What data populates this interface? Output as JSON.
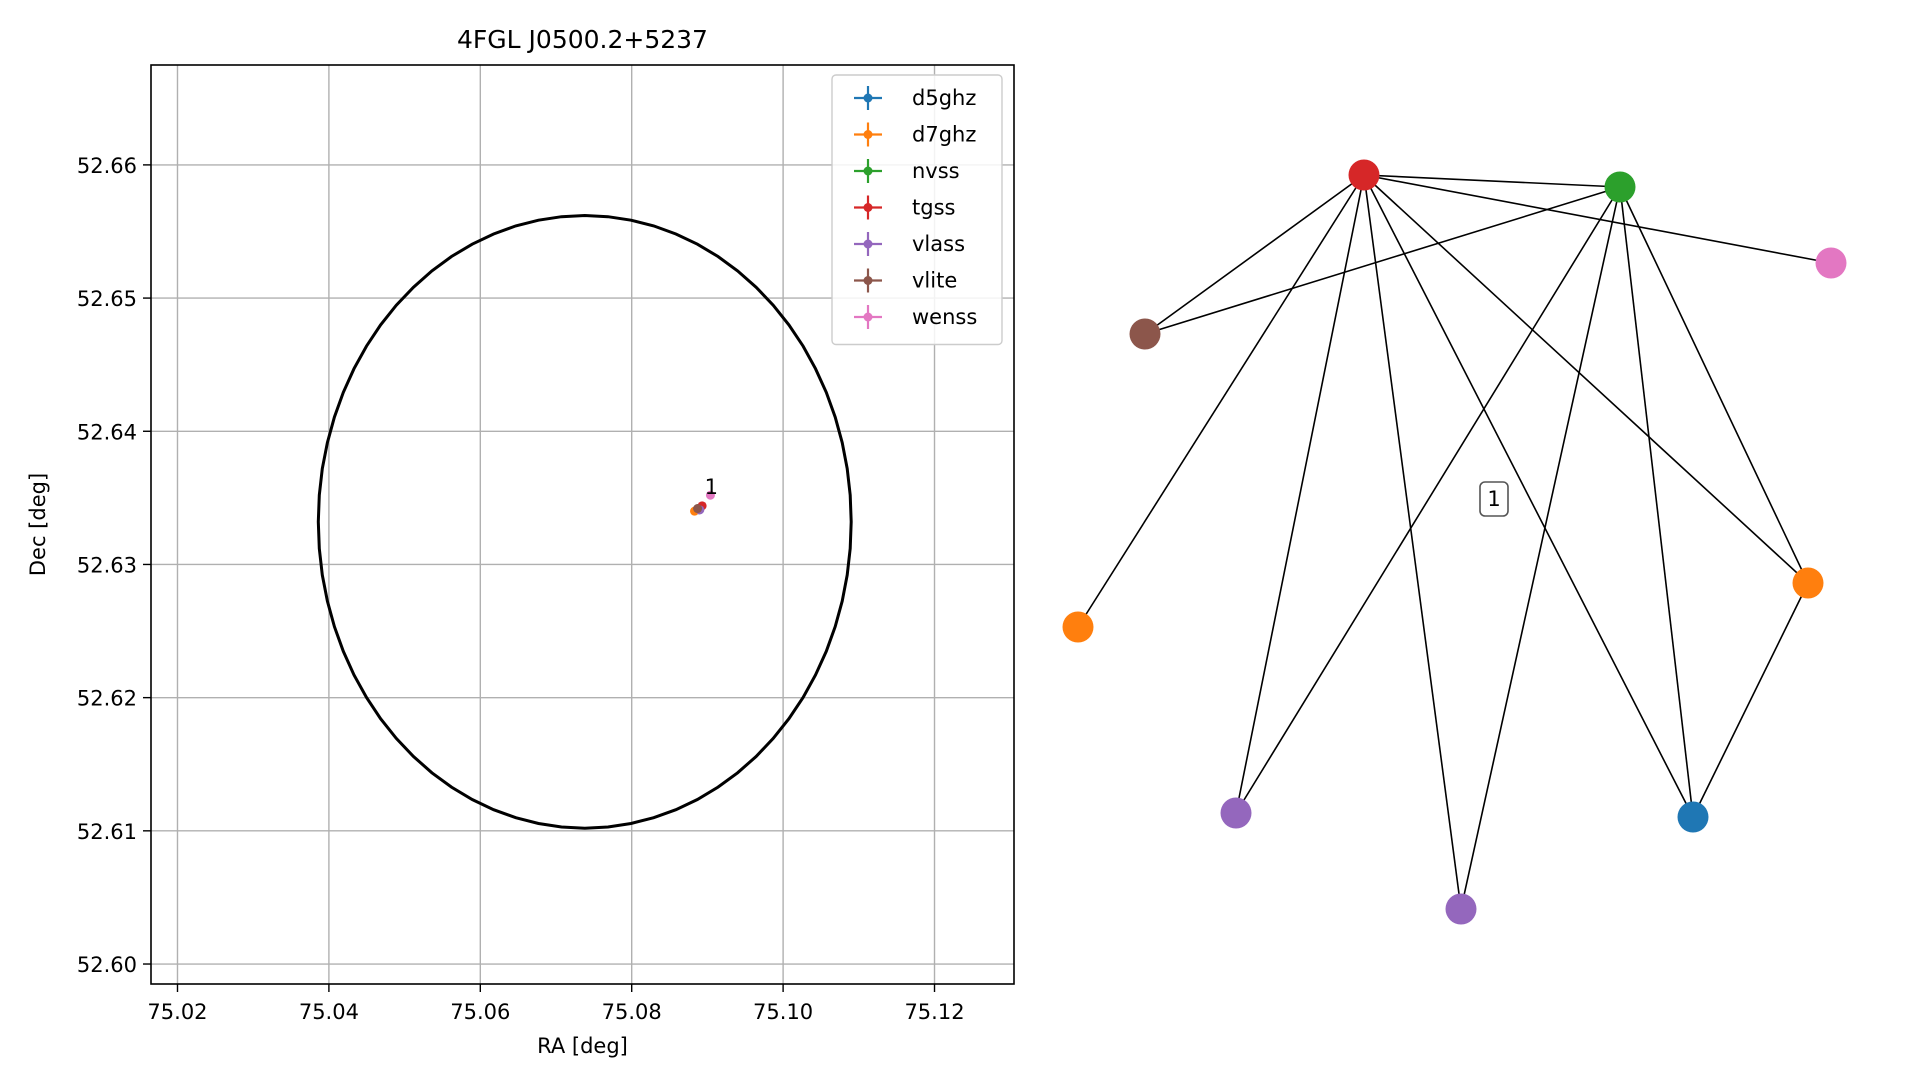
{
  "chart_data": [
    {
      "type": "scatter",
      "title": "4FGL J0500.2+5237",
      "xlabel": "RA [deg]",
      "ylabel": "Dec [deg]",
      "xlim": [
        75.0165,
        75.1305
      ],
      "ylim": [
        52.5985,
        52.6675
      ],
      "grid": true,
      "legend_position": "upper right",
      "x_ticks": [
        75.02,
        75.04,
        75.06,
        75.08,
        75.1,
        75.12
      ],
      "x_tick_labels": [
        "75.02",
        "75.04",
        "75.06",
        "75.08",
        "75.10",
        "75.12"
      ],
      "y_ticks": [
        52.6,
        52.61,
        52.62,
        52.63,
        52.64,
        52.65,
        52.66
      ],
      "y_tick_labels": [
        "52.60",
        "52.61",
        "52.62",
        "52.63",
        "52.64",
        "52.65",
        "52.66"
      ],
      "ellipse": {
        "color": "#000000",
        "center": [
          75.0738,
          52.6332
        ],
        "semi_axis_ra_deg": 0.0352,
        "semi_axis_dec_deg": 0.023
      },
      "series": [
        {
          "name": "d5ghz",
          "color": "#1f77b4",
          "x": [
            75.0889
          ],
          "y": [
            52.6341
          ]
        },
        {
          "name": "d7ghz",
          "color": "#ff7f0e",
          "x": [
            75.0883
          ],
          "y": [
            52.634
          ]
        },
        {
          "name": "nvss",
          "color": "#2ca02c",
          "x": [
            75.0888
          ],
          "y": [
            52.6342
          ]
        },
        {
          "name": "tgss",
          "color": "#d62728",
          "x": [
            75.0893
          ],
          "y": [
            52.6344
          ]
        },
        {
          "name": "vlass",
          "color": "#9467bd",
          "x": [
            75.089
          ],
          "y": [
            52.6341
          ]
        },
        {
          "name": "vlite",
          "color": "#8c564b",
          "x": [
            75.0887
          ],
          "y": [
            52.6342
          ]
        },
        {
          "name": "wenss",
          "color": "#e377c2",
          "x": [
            75.0904
          ],
          "y": [
            52.6352
          ]
        }
      ],
      "annotations": [
        {
          "text": "1",
          "x": 75.0903,
          "y": 52.6355
        }
      ]
    },
    {
      "type": "network",
      "cluster_label": "1",
      "nodes": [
        {
          "id": "n1",
          "color": "#d62728"
        },
        {
          "id": "n2",
          "color": "#2ca02c"
        },
        {
          "id": "n3",
          "color": "#e377c2"
        },
        {
          "id": "n4",
          "color": "#8c564b"
        },
        {
          "id": "n5",
          "color": "#ff7f0e"
        },
        {
          "id": "n6",
          "color": "#ff7f0e"
        },
        {
          "id": "n7",
          "color": "#9467bd"
        },
        {
          "id": "n8",
          "color": "#9467bd"
        },
        {
          "id": "n9",
          "color": "#1f77b4"
        }
      ],
      "edges": [
        [
          "n1",
          "n2"
        ],
        [
          "n1",
          "n3"
        ],
        [
          "n1",
          "n4"
        ],
        [
          "n1",
          "n5"
        ],
        [
          "n1",
          "n6"
        ],
        [
          "n1",
          "n7"
        ],
        [
          "n1",
          "n8"
        ],
        [
          "n1",
          "n9"
        ],
        [
          "n2",
          "n4"
        ],
        [
          "n2",
          "n6"
        ],
        [
          "n2",
          "n7"
        ],
        [
          "n2",
          "n8"
        ],
        [
          "n2",
          "n9"
        ],
        [
          "n6",
          "n9"
        ]
      ]
    }
  ]
}
